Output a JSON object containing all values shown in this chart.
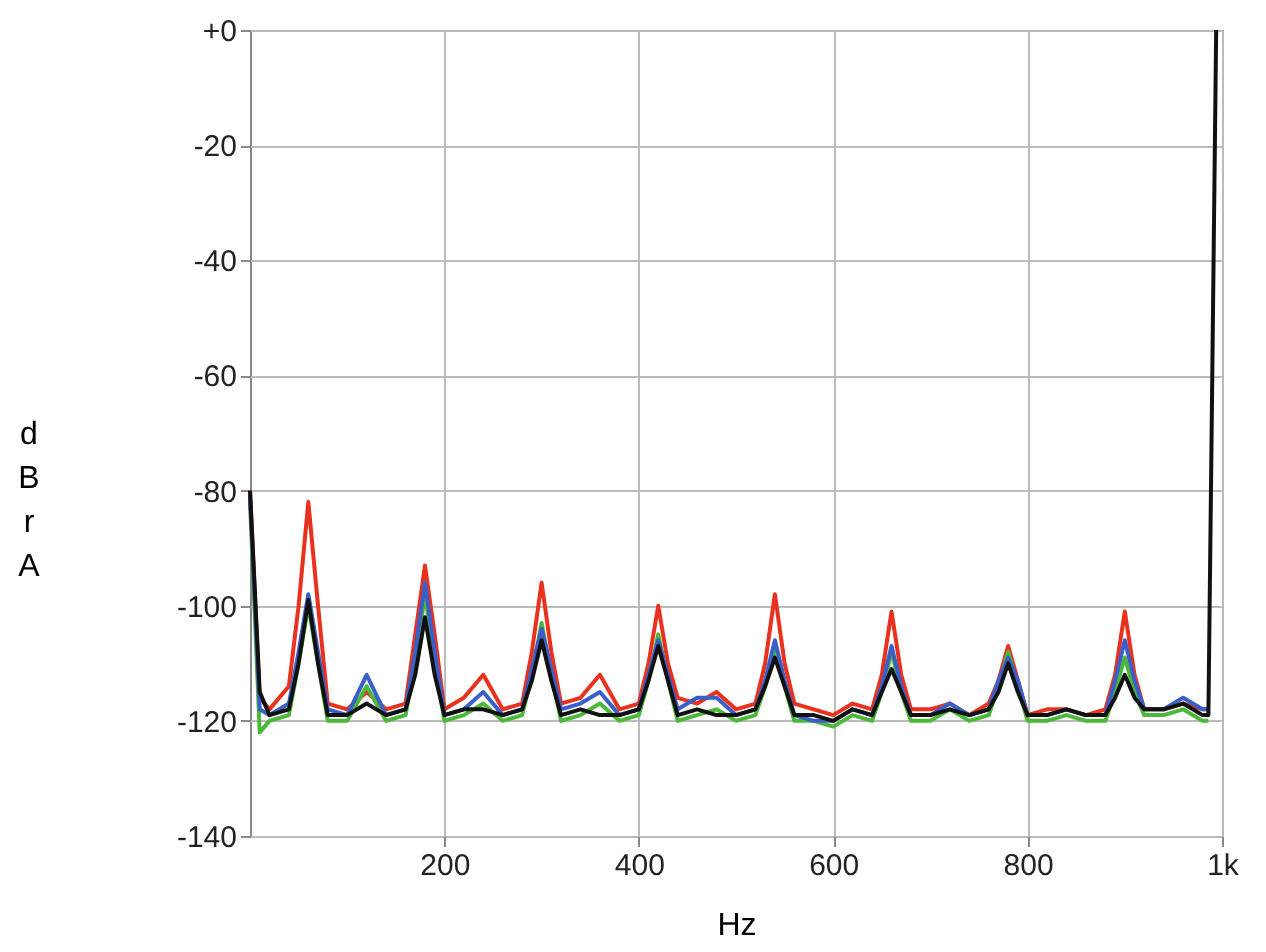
{
  "chart_data": {
    "type": "line",
    "xlabel": "Hz",
    "ylabel": "dBrA",
    "xlim": [
      0,
      1000
    ],
    "ylim": [
      -140,
      0
    ],
    "xticks": [
      200,
      400,
      600,
      800,
      {
        "value": 1000,
        "label": "1k"
      }
    ],
    "yticks": [
      {
        "value": 0,
        "label": "+0"
      },
      -20,
      -40,
      -60,
      -80,
      -100,
      -120,
      -140
    ],
    "grid": true,
    "legend": false,
    "marker": "none",
    "line_style": "solid",
    "x": [
      0,
      10,
      20,
      40,
      50,
      60,
      70,
      80,
      100,
      120,
      140,
      160,
      170,
      180,
      190,
      200,
      220,
      240,
      260,
      280,
      290,
      300,
      310,
      320,
      340,
      360,
      380,
      400,
      410,
      420,
      430,
      440,
      460,
      480,
      500,
      520,
      530,
      540,
      550,
      560,
      580,
      600,
      620,
      640,
      650,
      660,
      670,
      680,
      700,
      720,
      740,
      760,
      770,
      780,
      790,
      800,
      820,
      840,
      860,
      880,
      890,
      900,
      910,
      920,
      940,
      960,
      980,
      986
    ],
    "series": [
      {
        "color": "#e8321e",
        "values": [
          -80,
          -116,
          -118,
          -114,
          -100,
          -82,
          -100,
          -117,
          -118,
          -115,
          -118,
          -117,
          -105,
          -93,
          -105,
          -118,
          -116,
          -112,
          -118,
          -117,
          -108,
          -96,
          -108,
          -117,
          -116,
          -112,
          -118,
          -117,
          -110,
          -100,
          -110,
          -116,
          -117,
          -115,
          -118,
          -117,
          -110,
          -98,
          -110,
          -117,
          -118,
          -119,
          -117,
          -118,
          -112,
          -101,
          -112,
          -118,
          -118,
          -117,
          -119,
          -117,
          -113,
          -107,
          -113,
          -119,
          -118,
          -118,
          -119,
          -118,
          -112,
          -101,
          -112,
          -118,
          -118,
          -117,
          -118,
          -118
        ]
      },
      {
        "color": "#4bb83a",
        "values": [
          -82,
          -122,
          -120,
          -119,
          -110,
          -100,
          -110,
          -120,
          -120,
          -114,
          -120,
          -119,
          -110,
          -98,
          -110,
          -120,
          -119,
          -117,
          -120,
          -119,
          -112,
          -103,
          -112,
          -120,
          -119,
          -117,
          -120,
          -119,
          -113,
          -105,
          -113,
          -120,
          -119,
          -118,
          -120,
          -119,
          -114,
          -107,
          -114,
          -120,
          -120,
          -121,
          -119,
          -120,
          -115,
          -108,
          -115,
          -120,
          -120,
          -118,
          -120,
          -119,
          -114,
          -108,
          -114,
          -120,
          -120,
          -119,
          -120,
          -120,
          -115,
          -109,
          -115,
          -119,
          -119,
          -118,
          -120,
          -120
        ]
      },
      {
        "color": "#3a5fc8",
        "values": [
          -81,
          -118,
          -119,
          -117,
          -108,
          -98,
          -108,
          -118,
          -119,
          -112,
          -119,
          -118,
          -108,
          -96,
          -108,
          -119,
          -118,
          -115,
          -119,
          -118,
          -111,
          -104,
          -111,
          -118,
          -117,
          -115,
          -119,
          -118,
          -112,
          -106,
          -112,
          -118,
          -116,
          -116,
          -119,
          -118,
          -113,
          -106,
          -113,
          -119,
          -120,
          -120,
          -118,
          -119,
          -114,
          -107,
          -114,
          -119,
          -119,
          -117,
          -119,
          -118,
          -113,
          -109,
          -113,
          -119,
          -119,
          -118,
          -119,
          -119,
          -113,
          -106,
          -113,
          -118,
          -118,
          -116,
          -118,
          -118
        ]
      },
      {
        "color": "#111111",
        "x": [
          0,
          10,
          20,
          40,
          50,
          60,
          70,
          80,
          100,
          120,
          140,
          160,
          170,
          180,
          190,
          200,
          220,
          240,
          260,
          280,
          290,
          300,
          310,
          320,
          340,
          360,
          380,
          400,
          410,
          420,
          430,
          440,
          460,
          480,
          500,
          520,
          530,
          540,
          550,
          560,
          580,
          600,
          620,
          640,
          650,
          660,
          670,
          680,
          700,
          720,
          740,
          760,
          770,
          780,
          790,
          800,
          820,
          840,
          860,
          880,
          890,
          900,
          910,
          920,
          940,
          960,
          980,
          986,
          990,
          994
        ],
        "values": [
          -80,
          -115,
          -119,
          -118,
          -110,
          -99,
          -110,
          -119,
          -119,
          -117,
          -119,
          -118,
          -112,
          -102,
          -112,
          -119,
          -118,
          -118,
          -119,
          -118,
          -113,
          -106,
          -113,
          -119,
          -118,
          -119,
          -119,
          -118,
          -113,
          -107,
          -113,
          -119,
          -118,
          -119,
          -119,
          -118,
          -114,
          -109,
          -114,
          -119,
          -119,
          -120,
          -118,
          -119,
          -115,
          -111,
          -115,
          -119,
          -119,
          -118,
          -119,
          -118,
          -115,
          -110,
          -115,
          -119,
          -119,
          -118,
          -119,
          -119,
          -116,
          -112,
          -116,
          -118,
          -118,
          -117,
          -119,
          -119,
          -60,
          0
        ]
      }
    ]
  }
}
